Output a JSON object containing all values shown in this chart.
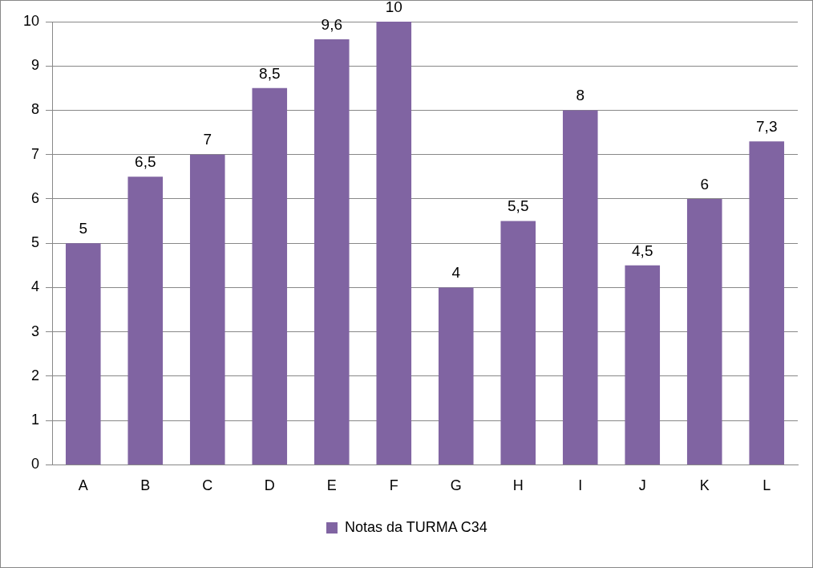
{
  "chart_data": {
    "type": "bar",
    "categories": [
      "A",
      "B",
      "C",
      "D",
      "E",
      "F",
      "G",
      "H",
      "I",
      "J",
      "K",
      "L"
    ],
    "series": [
      {
        "name": "Notas da TURMA C34",
        "color": "#8064a2",
        "values": [
          5,
          6.5,
          7,
          8.5,
          9.6,
          10,
          4,
          5.5,
          8,
          4.5,
          6,
          7.3
        ],
        "value_labels": [
          "5",
          "6,5",
          "7",
          "8,5",
          "9,6",
          "10",
          "4",
          "5,5",
          "8",
          "4,5",
          "6",
          "7,3"
        ]
      }
    ],
    "ylim": [
      0,
      10
    ],
    "yticks": [
      0,
      1,
      2,
      3,
      4,
      5,
      6,
      7,
      8,
      9,
      10
    ],
    "grid": "y",
    "legend": "bottom"
  }
}
